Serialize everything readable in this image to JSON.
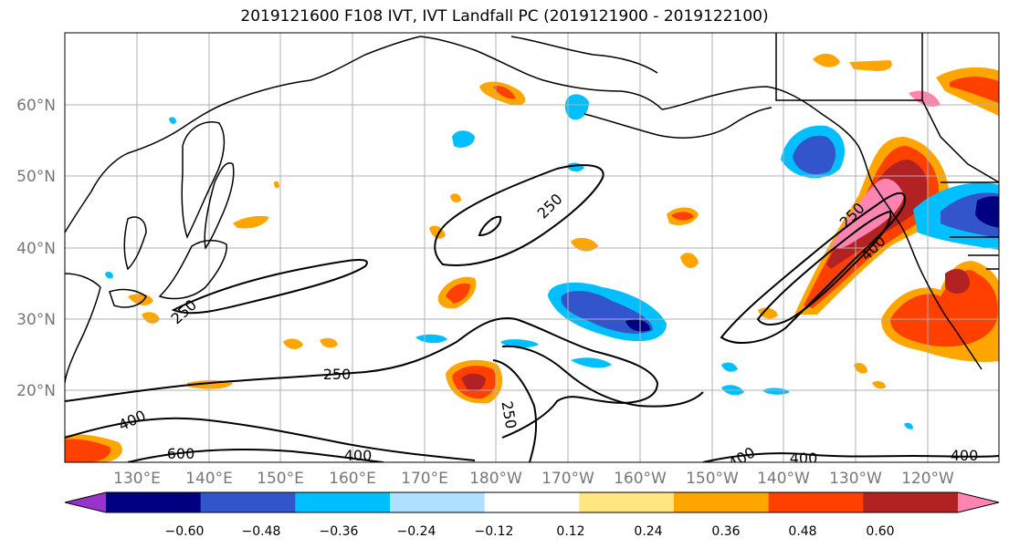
{
  "title": "2019121600 F108 IVT, IVT Landfall PC (2019121900 - 2019122100)",
  "lat_labels": [
    "60°N",
    "50°N",
    "40°N",
    "30°N",
    "20°N"
  ],
  "lon_labels": [
    "130°E",
    "140°E",
    "150°E",
    "160°E",
    "170°E",
    "180°W",
    "170°W",
    "160°W",
    "150°W",
    "140°W",
    "130°W",
    "120°W"
  ],
  "contour_labels": [
    "250",
    "250",
    "250",
    "250",
    "400",
    "400",
    "600",
    "400",
    "400",
    "400",
    "250",
    "400"
  ],
  "colorbar": {
    "colors": [
      "#9933cc",
      "#000080",
      "#3355cc",
      "#00bfff",
      "#b0e0ff",
      "#ffffff",
      "#ffe680",
      "#ffa500",
      "#ff4000",
      "#b22222",
      "#ff85b0"
    ],
    "tick_labels": [
      "−0.60",
      "−0.48",
      "−0.36",
      "−0.24",
      "−0.12",
      "0.12",
      "0.24",
      "0.36",
      "0.48",
      "0.60"
    ]
  }
}
